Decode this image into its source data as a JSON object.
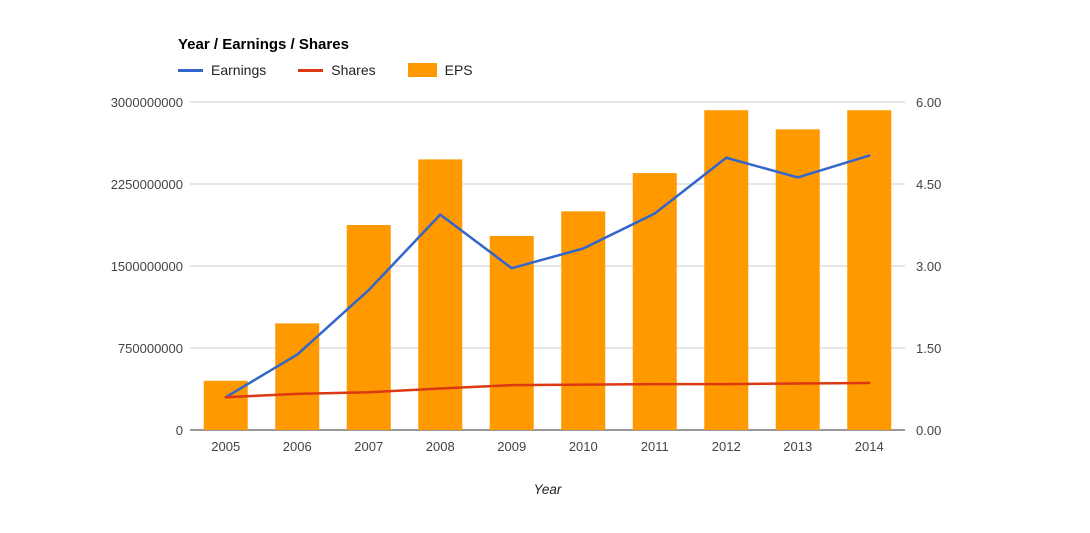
{
  "chart_data": {
    "type": "combo",
    "title": "Year / Earnings / Shares",
    "xlabel": "Year",
    "grid": true,
    "legend_position": "top-left",
    "categories": [
      "2005",
      "2006",
      "2007",
      "2008",
      "2009",
      "2010",
      "2011",
      "2012",
      "2013",
      "2014"
    ],
    "series": [
      {
        "name": "Earnings",
        "type": "line",
        "axis": "left",
        "color": "#3366cc",
        "values": [
          300000000,
          690000000,
          1280000000,
          1970000000,
          1480000000,
          1660000000,
          1980000000,
          2490000000,
          2310000000,
          2510000000
        ]
      },
      {
        "name": "Shares",
        "type": "line",
        "axis": "left",
        "color": "#dc3912",
        "values": [
          300000000,
          330000000,
          345000000,
          380000000,
          410000000,
          415000000,
          420000000,
          420000000,
          425000000,
          430000000
        ]
      },
      {
        "name": "EPS",
        "type": "bar",
        "axis": "right",
        "color": "#ff9900",
        "values": [
          0.9,
          1.95,
          3.75,
          4.95,
          3.55,
          4.0,
          4.7,
          5.85,
          5.5,
          5.85
        ]
      }
    ],
    "left_axis": {
      "min": 0,
      "max": 3000000000,
      "ticks": [
        "0",
        "750000000",
        "1500000000",
        "2250000000",
        "3000000000"
      ]
    },
    "right_axis": {
      "min": 0,
      "max": 6,
      "ticks": [
        "0.00",
        "1.50",
        "3.00",
        "4.50",
        "6.00"
      ]
    },
    "colors": {
      "grid": "#cccccc",
      "baseline": "#333333",
      "tick_text": "#444444"
    }
  }
}
